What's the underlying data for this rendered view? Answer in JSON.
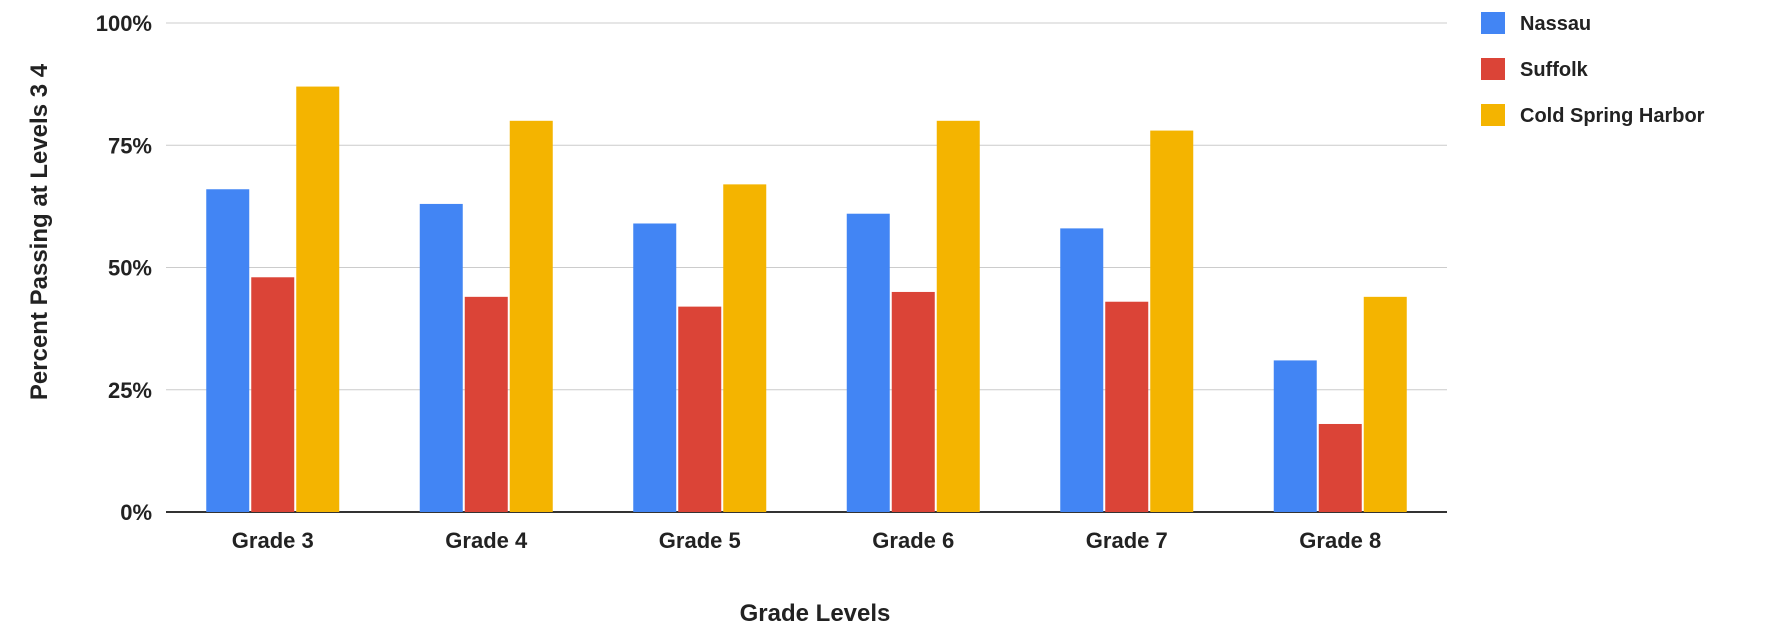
{
  "chart_data": {
    "type": "bar",
    "title": "",
    "xlabel": "Grade Levels",
    "ylabel": "Percent Passing at Levels 3  4",
    "ylim": [
      0,
      100
    ],
    "y_ticks": [
      "0%",
      "25%",
      "50%",
      "75%",
      "100%"
    ],
    "y_tick_values": [
      0,
      25,
      50,
      75,
      100
    ],
    "categories": [
      "Grade 3",
      "Grade 4",
      "Grade 5",
      "Grade 6",
      "Grade 7",
      "Grade 8"
    ],
    "series": [
      {
        "name": "Nassau",
        "color": "#4285f4",
        "values": [
          66,
          63,
          59,
          61,
          58,
          31
        ]
      },
      {
        "name": "Suffolk",
        "color": "#db4437",
        "values": [
          48,
          44,
          42,
          45,
          43,
          18
        ]
      },
      {
        "name": "Cold Spring Harbor",
        "color": "#f4b400",
        "values": [
          87,
          80,
          67,
          80,
          78,
          44
        ]
      }
    ],
    "grid": true,
    "legend_position": "top-right"
  }
}
